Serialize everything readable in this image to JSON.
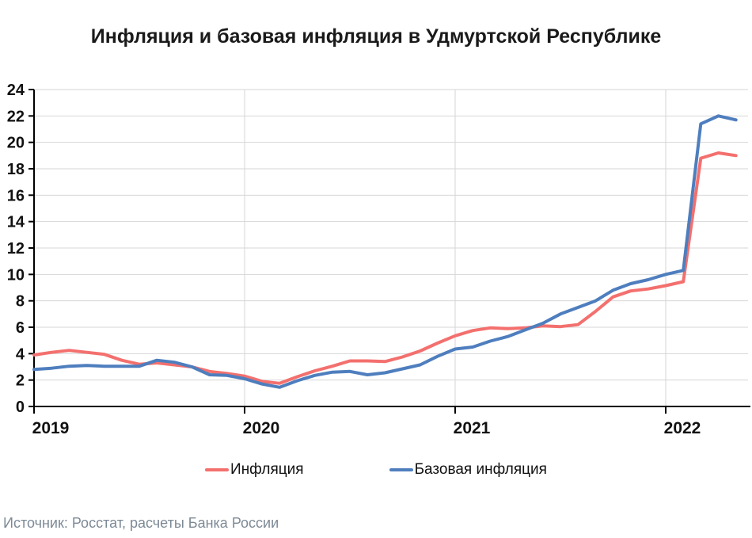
{
  "title": "Инфляция и базовая инфляция в Удмуртской Республике",
  "source": "Источник: Росстат, расчеты Банка России",
  "colors": {
    "inflation": "#f3706e",
    "core_inflation": "#4e7ebe",
    "grid": "#d6d6d6",
    "axis": "#000000",
    "source_text": "#7d8a96"
  },
  "legend": [
    {
      "label": "Инфляция",
      "color": "#f3706e"
    },
    {
      "label": "Базовая инфляция",
      "color": "#4e7ebe"
    }
  ],
  "chart_data": {
    "type": "line",
    "title": "Инфляция и базовая инфляция в Удмуртской Республике",
    "xlabel": "",
    "ylabel": "",
    "x_unit": "month",
    "x_start": "2019-01",
    "x_end": "2022-05",
    "ylim": [
      0,
      24
    ],
    "ytick_step": 2,
    "yticks": [
      0,
      2,
      4,
      6,
      8,
      10,
      12,
      14,
      16,
      18,
      20,
      22,
      24
    ],
    "xticks": [
      {
        "label": "2019",
        "month_index": 0
      },
      {
        "label": "2020",
        "month_index": 12
      },
      {
        "label": "2021",
        "month_index": 24
      },
      {
        "label": "2022",
        "month_index": 36
      }
    ],
    "grid": true,
    "legend_position": "bottom",
    "series": [
      {
        "name": "Инфляция",
        "color": "#f3706e",
        "values": [
          3.9,
          4.1,
          4.25,
          4.1,
          3.95,
          3.5,
          3.2,
          3.3,
          3.15,
          3.0,
          2.65,
          2.5,
          2.3,
          1.9,
          1.75,
          2.25,
          2.7,
          3.05,
          3.45,
          3.45,
          3.4,
          3.75,
          4.2,
          4.8,
          5.35,
          5.75,
          5.95,
          5.9,
          5.95,
          6.1,
          6.05,
          6.2,
          7.2,
          8.3,
          8.75,
          8.9,
          9.15,
          9.45,
          18.8,
          19.2,
          19.0
        ]
      },
      {
        "name": "Базовая инфляция",
        "color": "#4e7ebe",
        "values": [
          2.8,
          2.9,
          3.05,
          3.1,
          3.05,
          3.05,
          3.05,
          3.5,
          3.35,
          3.0,
          2.4,
          2.35,
          2.1,
          1.7,
          1.45,
          1.95,
          2.35,
          2.6,
          2.65,
          2.4,
          2.55,
          2.85,
          3.15,
          3.8,
          4.35,
          4.5,
          4.95,
          5.3,
          5.8,
          6.3,
          7.0,
          7.5,
          8.0,
          8.8,
          9.3,
          9.6,
          10.0,
          10.3,
          21.4,
          22.0,
          21.7
        ]
      }
    ]
  }
}
